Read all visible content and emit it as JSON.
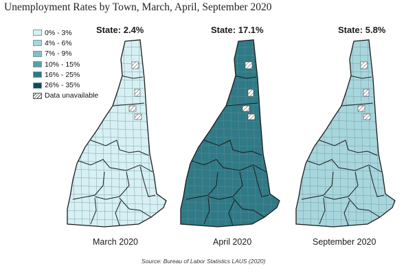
{
  "title": "Unemployment Rates by Town, March, April, September 2020",
  "legend": {
    "items": [
      {
        "label": "0% - 3%",
        "color": "#d6f0f3"
      },
      {
        "label": "4% - 6%",
        "color": "#a7d6dd"
      },
      {
        "label": "7% - 9%",
        "color": "#82bfc8"
      },
      {
        "label": "10% - 15%",
        "color": "#56a0ab"
      },
      {
        "label": "16% - 25%",
        "color": "#2f7a86"
      },
      {
        "label": "26% - 35%",
        "color": "#0d4b57"
      }
    ],
    "unavailable_label": "Data unavailable"
  },
  "maps": [
    {
      "label": "March 2020",
      "state_label": "State: 2.4%",
      "base_color": "#d6f0f3"
    },
    {
      "label": "April 2020",
      "state_label": "State: 17.1%",
      "base_color": "#2f7a86"
    },
    {
      "label": "September 2020",
      "state_label": "State: 5.8%",
      "base_color": "#a7d6dd"
    }
  ],
  "source": "Source: Bureau of Labor Statistics LAUS (2020)"
}
